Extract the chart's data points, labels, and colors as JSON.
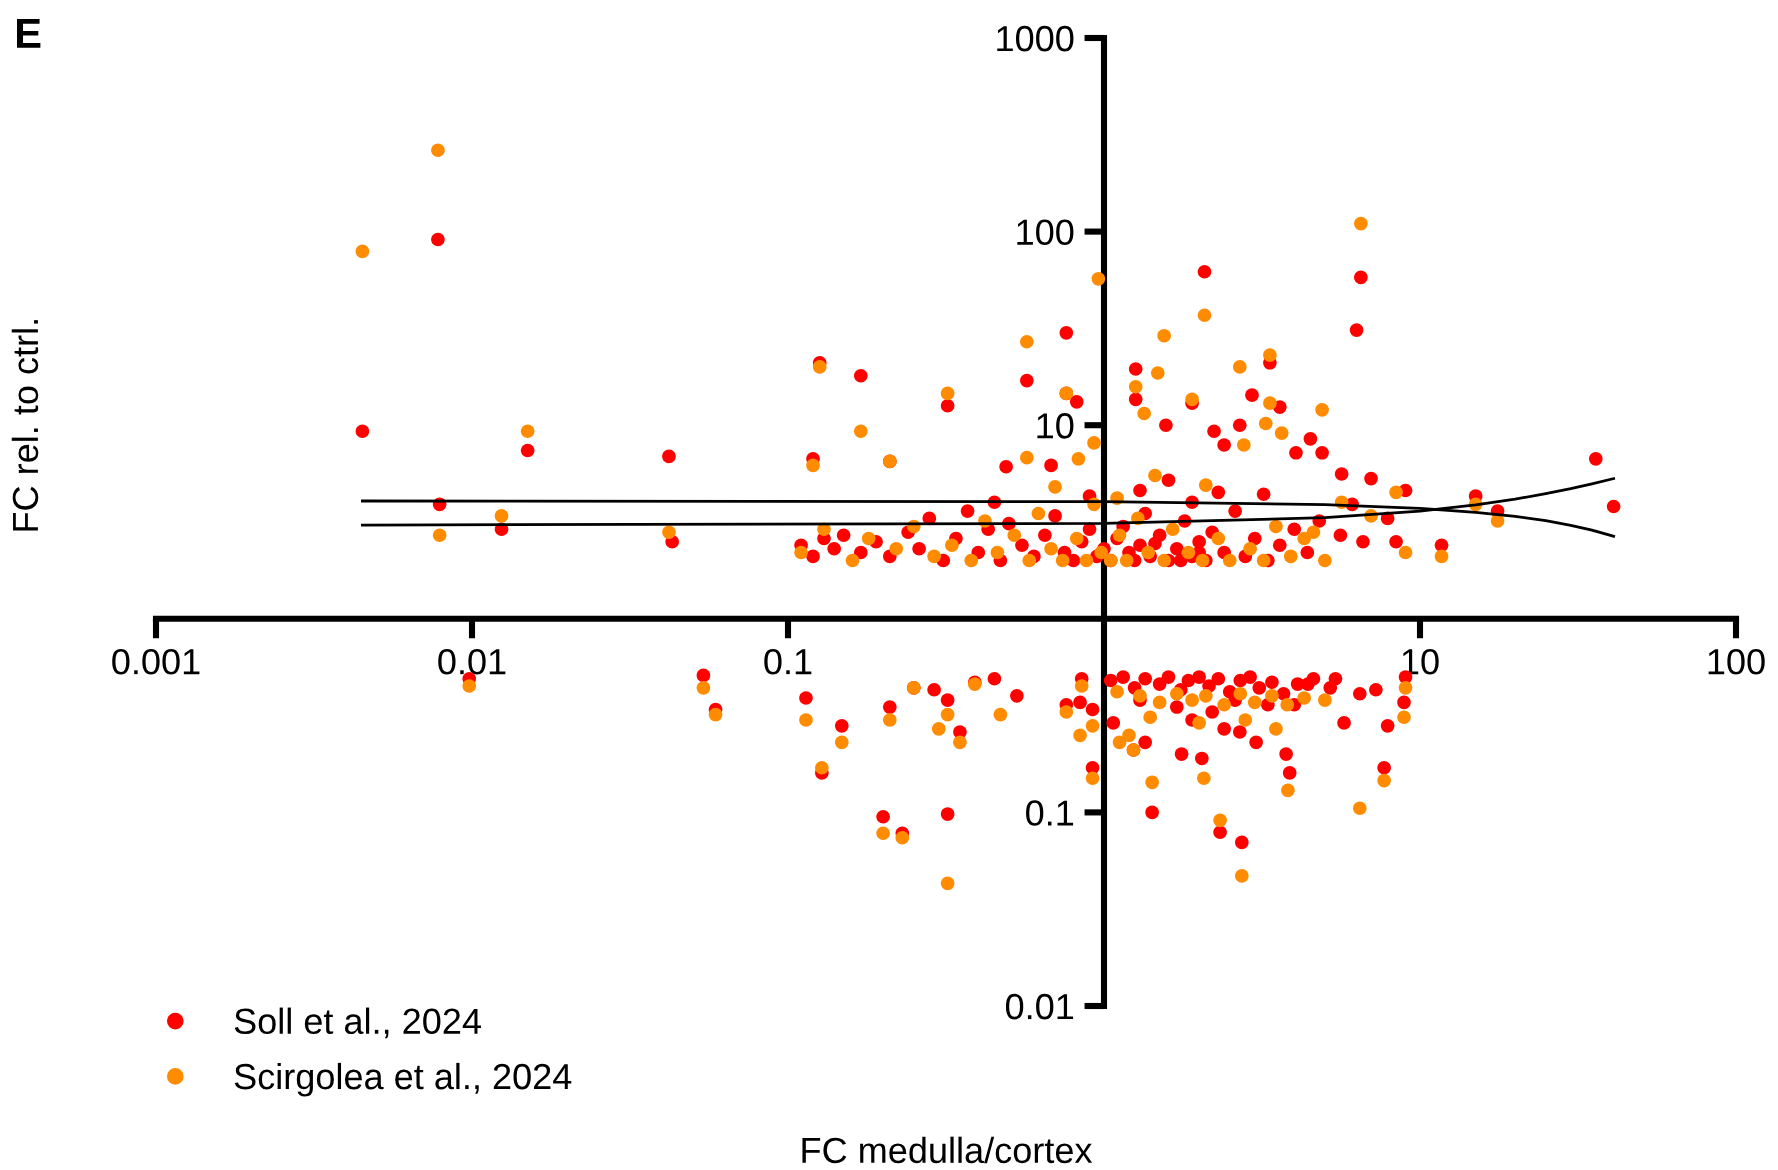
{
  "chart_data": {
    "type": "scatter",
    "title": "E",
    "xlabel": "FC medulla/cortex",
    "ylabel": "FC rel. to ctrl.",
    "log": "xy",
    "xlim": [
      0.001,
      100
    ],
    "ylim": [
      0.01,
      1000
    ],
    "xticks": [
      0.001,
      0.01,
      0.1,
      10,
      100
    ],
    "yticks": [
      0.01,
      0.1,
      10,
      100,
      1000
    ],
    "grid": false,
    "legend": "bottom left",
    "marker": "circle",
    "series": [
      {
        "name": "Soll et al., 2024",
        "color": "#ff0000",
        "x": [
          0.0045,
          0.0078,
          0.0079,
          0.0124,
          0.015,
          0.042,
          0.043,
          0.12,
          0.126,
          0.17,
          0.21,
          0.32,
          0.82,
          0.76,
          0.76,
          0.57,
          1.26,
          1.26,
          2.08,
          6.3,
          6.5,
          2.94,
          1.9,
          3.35,
          3.6,
          1.57,
          2.23,
          2.69,
          4.5,
          2.4,
          4.05,
          4.9,
          0.49,
          0.68,
          7.0,
          5.65,
          36,
          41,
          15,
          17.6,
          11.7,
          8.4,
          9.0,
          7.9,
          6.6,
          6.1,
          5.6,
          0.11,
          0.12,
          0.13,
          0.14,
          0.15,
          0.17,
          0.19,
          0.21,
          0.24,
          0.26,
          0.28,
          0.31,
          0.34,
          0.37,
          0.4,
          0.43,
          0.47,
          0.5,
          0.55,
          0.6,
          0.65,
          0.7,
          0.75,
          0.8,
          0.85,
          0.9,
          0.95,
          1.0,
          1.05,
          1.1,
          1.15,
          1.2,
          1.25,
          1.3,
          1.35,
          1.4,
          1.5,
          1.6,
          1.7,
          1.8,
          1.9,
          2.0,
          2.1,
          2.2,
          2.4,
          2.6,
          2.8,
          3.0,
          3.3,
          3.6,
          4.0,
          4.4,
          4.8,
          1.3,
          1.6,
          1.9,
          2.3,
          0.9,
          0.45,
          3.2,
          2.0,
          1.75,
          1.45,
          0.0098,
          0.054,
          0.059,
          0.114,
          0.148,
          0.128,
          0.2,
          0.23,
          0.32,
          0.21,
          0.25,
          0.29,
          0.32,
          0.35,
          0.39,
          0.45,
          0.53,
          0.76,
          0.84,
          0.85,
          0.92,
          0.92,
          1.07,
          1.24,
          1.35,
          1.42,
          1.76,
          2.04,
          2.33,
          2.73,
          3.03,
          3.77,
          3.87,
          4.42,
          5.4,
          5.75,
          6.45,
          7.25,
          7.7,
          7.9,
          8.9,
          9.0,
          2.69,
          4.0,
          1.05,
          1.15,
          1.25,
          1.35,
          1.5,
          1.6,
          1.75,
          1.85,
          2.0,
          2.15,
          2.3,
          2.5,
          2.7,
          2.9,
          3.1,
          3.4,
          3.7,
          4.1,
          4.6,
          5.2,
          1.3,
          1.7,
          2.2,
          2.6,
          3.3,
          1.9,
          2.4
        ],
        "values": [
          9.3,
          91,
          3.9,
          2.9,
          7.4,
          6.9,
          2.5,
          6.7,
          21,
          18,
          6.5,
          12.6,
          13.2,
          30,
          14.6,
          17,
          19.5,
          13.6,
          62,
          31,
          58,
          14.3,
          13,
          21,
          12.4,
          10,
          9.3,
          10,
          8.5,
          7.9,
          7.2,
          7.2,
          6.1,
          6.2,
          5.3,
          5.6,
          6.7,
          3.8,
          4.3,
          3.6,
          2.4,
          2.5,
          4.6,
          3.3,
          2.5,
          3.9,
          2.7,
          2.4,
          2.1,
          2.6,
          2.3,
          2.7,
          2.2,
          2.5,
          2.1,
          2.8,
          2.3,
          3.3,
          2.0,
          2.6,
          3.6,
          2.2,
          2.9,
          2.0,
          3.1,
          2.4,
          2.1,
          2.7,
          3.4,
          2.2,
          2.0,
          2.5,
          2.9,
          2.1,
          2.3,
          2.0,
          2.6,
          3.0,
          2.2,
          2.0,
          2.4,
          3.5,
          2.1,
          2.7,
          2.0,
          2.3,
          3.2,
          2.1,
          2.5,
          2.0,
          2.8,
          2.2,
          3.6,
          2.1,
          2.6,
          2.0,
          2.4,
          2.9,
          2.2,
          3.2,
          4.6,
          5.2,
          4.0,
          4.5,
          4.3,
          4.0,
          4.4,
          2.2,
          2.0,
          2.45,
          0.49,
          0.51,
          0.34,
          0.39,
          0.28,
          0.16,
          0.095,
          0.078,
          0.098,
          0.35,
          0.44,
          0.43,
          0.38,
          0.26,
          0.47,
          0.49,
          0.4,
          0.36,
          0.37,
          0.49,
          0.34,
          0.17,
          0.29,
          0.21,
          0.23,
          0.1,
          0.2,
          0.19,
          0.079,
          0.07,
          0.23,
          0.2,
          0.16,
          0.46,
          0.49,
          0.29,
          0.41,
          0.43,
          0.17,
          0.28,
          0.37,
          0.5,
          0.26,
          0.36,
          0.48,
          0.5,
          0.44,
          0.49,
          0.46,
          0.5,
          0.43,
          0.48,
          0.5,
          0.45,
          0.49,
          0.42,
          0.48,
          0.5,
          0.44,
          0.47,
          0.41,
          0.46,
          0.49,
          0.44,
          0.38,
          0.35,
          0.33,
          0.38,
          0.36,
          0.3,
          0.27
        ]
      },
      {
        "name": "Scirgolea et al., 2024",
        "color": "#ff8c00",
        "x": [
          0.0045,
          0.0078,
          0.0079,
          0.0124,
          0.015,
          0.042,
          0.12,
          0.126,
          0.17,
          0.21,
          0.96,
          0.57,
          1.55,
          1.26,
          1.48,
          2.69,
          3.35,
          1.9,
          1.34,
          4.9,
          3.35,
          0.32,
          0.76,
          3.25,
          3.65,
          2.77,
          0.93,
          0.57,
          0.83,
          2.08,
          6.5,
          15,
          17.6,
          11.7,
          9.0,
          8.4,
          7.0,
          5.65,
          4.6,
          0.11,
          0.13,
          0.16,
          0.18,
          0.22,
          0.25,
          0.29,
          0.33,
          0.38,
          0.42,
          0.46,
          0.52,
          0.58,
          0.62,
          0.68,
          0.74,
          0.82,
          0.88,
          0.93,
          0.98,
          1.05,
          1.12,
          1.18,
          1.28,
          1.38,
          1.55,
          1.65,
          1.85,
          2.05,
          2.3,
          2.5,
          2.9,
          3.2,
          3.5,
          3.9,
          4.3,
          5.0,
          1.45,
          2.1,
          0.7,
          1.1,
          0.0098,
          0.054,
          0.059,
          0.114,
          0.148,
          0.128,
          0.2,
          0.23,
          0.32,
          0.21,
          0.25,
          0.32,
          0.3,
          0.35,
          0.39,
          0.47,
          0.76,
          0.85,
          0.92,
          0.84,
          0.92,
          1.12,
          1.24,
          1.42,
          2.07,
          2.33,
          2.73,
          3.82,
          6.45,
          7.7,
          8.9,
          9.0,
          1.1,
          1.3,
          1.5,
          1.7,
          1.9,
          2.1,
          2.4,
          2.7,
          3.0,
          3.4,
          3.8,
          4.3,
          5.0,
          1.4,
          2.0,
          2.8,
          1.2,
          3.5
        ],
        "values": [
          79,
          263,
          2.7,
          3.4,
          9.3,
          2.8,
          6.2,
          20,
          9.3,
          6.5,
          57,
          27,
          29,
          15.8,
          18.6,
          20,
          23,
          13.6,
          11.5,
          12,
          13,
          14.6,
          14.6,
          10.2,
          9.1,
          7.9,
          8.1,
          6.8,
          6.7,
          37,
          110,
          3.9,
          3.2,
          2.1,
          2.2,
          4.5,
          3.4,
          4.0,
          2.8,
          2.2,
          2.9,
          2.0,
          2.6,
          2.3,
          3.0,
          2.1,
          2.4,
          2.0,
          3.2,
          2.2,
          2.7,
          2.0,
          3.5,
          2.3,
          2.0,
          2.6,
          2.0,
          3.9,
          2.2,
          2.0,
          2.7,
          2.0,
          3.3,
          2.2,
          2.0,
          2.9,
          2.2,
          2.0,
          2.6,
          2.0,
          2.3,
          2.0,
          3.0,
          2.1,
          2.6,
          2.0,
          5.5,
          4.9,
          4.8,
          4.2,
          0.45,
          0.44,
          0.32,
          0.3,
          0.23,
          0.17,
          0.078,
          0.074,
          0.043,
          0.3,
          0.44,
          0.32,
          0.27,
          0.23,
          0.46,
          0.32,
          0.33,
          0.45,
          0.28,
          0.25,
          0.15,
          0.23,
          0.21,
          0.143,
          0.15,
          0.091,
          0.047,
          0.13,
          0.105,
          0.146,
          0.31,
          0.44,
          0.42,
          0.4,
          0.37,
          0.41,
          0.38,
          0.4,
          0.36,
          0.41,
          0.37,
          0.4,
          0.36,
          0.39,
          0.38,
          0.31,
          0.29,
          0.3,
          0.25,
          0.27
        ]
      },
      {
        "type": "line",
        "color": "#000000",
        "marker": "none",
        "line_style": "solid",
        "x": [
          0.0045,
          1,
          5,
          10,
          15,
          20,
          25,
          30,
          35,
          41
        ],
        "values": [
          4.06,
          4.03,
          3.89,
          3.72,
          3.55,
          3.38,
          3.21,
          3.04,
          2.87,
          2.67
        ]
      },
      {
        "type": "line",
        "color": "#000000",
        "marker": "none",
        "line_style": "solid",
        "x": [
          0.0045,
          1,
          5,
          10,
          15,
          20,
          25,
          30,
          35,
          41
        ],
        "values": [
          3.05,
          3.11,
          3.33,
          3.6,
          3.88,
          4.15,
          4.43,
          4.7,
          4.98,
          5.3
        ]
      }
    ]
  }
}
